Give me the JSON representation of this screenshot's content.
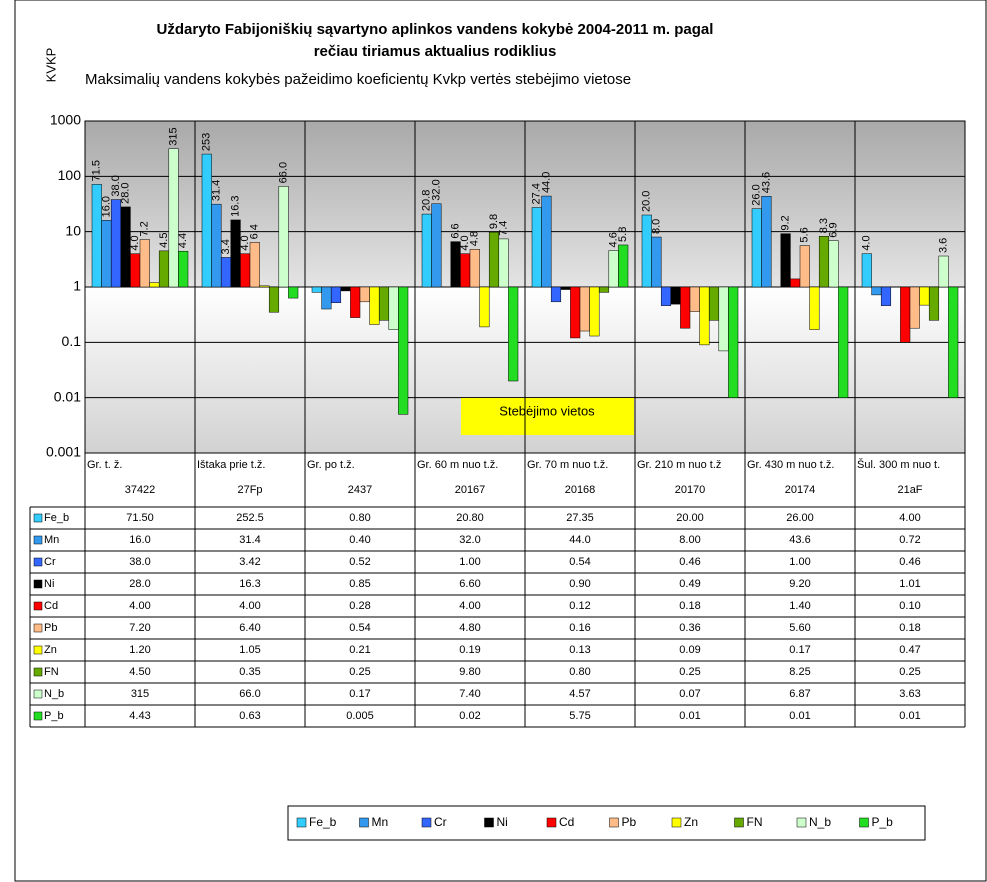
{
  "chart_data": {
    "type": "bar",
    "title": [
      "Uždaryto Fabijoniškių sąvartyno aplinkos vandens kokybė 2004-2011 m. pagal",
      "rečiau tiriamus aktualius rodiklius"
    ],
    "subtitle": "Maksimalių vandens kokybės pažeidimo koeficientų Kvkp vertės stebėjimo vietose",
    "y_label": "KVKP",
    "annotation": "Stebėjimo vietos",
    "log_scale": true,
    "grid": true,
    "legend_position": "bottom",
    "ylim": [
      0.001,
      1000
    ],
    "yticks": [
      0.001,
      0.01,
      0.1,
      1,
      10,
      100,
      1000
    ],
    "categories": [
      "Gr. t. ž.",
      "Ištaka prie t.ž.",
      "Gr. po t.ž.",
      "Gr. 60 m nuo t.ž.",
      "Gr. 70 m nuo t.ž.",
      "Gr. 210 m nuo t.ž",
      "Gr. 430 m nuo t.ž.",
      "Šul. 300 m nuo t."
    ],
    "category_codes": [
      "37422",
      "27Fp",
      "2437",
      "20167",
      "20168",
      "20170",
      "20174",
      "21aF"
    ],
    "series": [
      {
        "name": "Fe_b",
        "color": "#33ccff",
        "values": [
          71.5,
          252.5,
          0.8,
          20.8,
          27.35,
          20,
          26,
          4
        ],
        "value_labels": [
          "71.50",
          "252.5",
          "0.80",
          "20.80",
          "27.35",
          "20.00",
          "26.00",
          "4.00"
        ],
        "bar_labels": [
          "71.5",
          "253",
          null,
          "20.8",
          "27.4",
          "20.0",
          "26.0",
          "4.0"
        ]
      },
      {
        "name": "Mn",
        "color": "#3399ee",
        "values": [
          16,
          31.4,
          0.4,
          32,
          44,
          8,
          43.6,
          0.72
        ],
        "value_labels": [
          "16.0",
          "31.4",
          "0.40",
          "32.0",
          "44.0",
          "8.00",
          "43.6",
          "0.72"
        ],
        "bar_labels": [
          "16.0",
          "31.4",
          null,
          "32.0",
          "44.0",
          "8.0",
          "43.6",
          null
        ]
      },
      {
        "name": "Cr",
        "color": "#3366ff",
        "values": [
          38,
          3.42,
          0.52,
          1,
          0.54,
          0.46,
          1,
          0.46
        ],
        "value_labels": [
          "38.0",
          "3.42",
          "0.52",
          "1.00",
          "0.54",
          "0.46",
          "1.00",
          "0.46"
        ],
        "bar_labels": [
          "38.0",
          "3.4",
          null,
          null,
          null,
          null,
          null,
          null
        ]
      },
      {
        "name": "Ni",
        "color": "#000000",
        "values": [
          28,
          16.3,
          0.85,
          6.6,
          0.9,
          0.49,
          9.2,
          1.01
        ],
        "value_labels": [
          "28.0",
          "16.3",
          "0.85",
          "6.60",
          "0.90",
          "0.49",
          "9.20",
          "1.01"
        ],
        "bar_labels": [
          "28.0",
          "16.3",
          null,
          "6.6",
          null,
          null,
          "9.2",
          null
        ]
      },
      {
        "name": "Cd",
        "color": "#ff0000",
        "values": [
          4,
          4,
          0.28,
          4,
          0.12,
          0.18,
          1.4,
          0.1
        ],
        "value_labels": [
          "4.00",
          "4.00",
          "0.28",
          "4.00",
          "0.12",
          "0.18",
          "1.40",
          "0.10"
        ],
        "bar_labels": [
          "4.0",
          "4.0",
          null,
          "4.0",
          null,
          null,
          null,
          null
        ]
      },
      {
        "name": "Pb",
        "color": "#ffbb88",
        "values": [
          7.2,
          6.4,
          0.54,
          4.8,
          0.16,
          0.36,
          5.6,
          0.18
        ],
        "value_labels": [
          "7.20",
          "6.40",
          "0.54",
          "4.80",
          "0.16",
          "0.36",
          "5.60",
          "0.18"
        ],
        "bar_labels": [
          "7.2",
          "6.4",
          null,
          "4.8",
          null,
          null,
          "5.6",
          null
        ]
      },
      {
        "name": "Zn",
        "color": "#ffff00",
        "values": [
          1.2,
          1.05,
          0.21,
          0.19,
          0.13,
          0.09,
          0.17,
          0.47
        ],
        "value_labels": [
          "1.20",
          "1.05",
          "0.21",
          "0.19",
          "0.13",
          "0.09",
          "0.17",
          "0.47"
        ],
        "bar_labels": [
          null,
          null,
          null,
          null,
          null,
          null,
          null,
          null
        ]
      },
      {
        "name": "FN",
        "color": "#66aa00",
        "values": [
          4.5,
          0.35,
          0.25,
          9.8,
          0.8,
          0.25,
          8.25,
          0.25
        ],
        "value_labels": [
          "4.50",
          "0.35",
          "0.25",
          "9.80",
          "0.80",
          "0.25",
          "8.25",
          "0.25"
        ],
        "bar_labels": [
          "4.5",
          null,
          null,
          "9.8",
          null,
          null,
          "8.3",
          null
        ]
      },
      {
        "name": "N_b",
        "color": "#ccffcc",
        "values": [
          315,
          66,
          0.17,
          7.4,
          4.57,
          0.07,
          6.87,
          3.63
        ],
        "value_labels": [
          "315",
          "66.0",
          "0.17",
          "7.40",
          "4.57",
          "0.07",
          "6.87",
          "3.63"
        ],
        "bar_labels": [
          "315",
          "66.0",
          null,
          "7.4",
          "4.6",
          null,
          "6.9",
          "3.6"
        ]
      },
      {
        "name": "P_b",
        "color": "#22dd22",
        "values": [
          4.43,
          0.63,
          0.005,
          0.02,
          5.75,
          0.01,
          0.01,
          0.01
        ],
        "value_labels": [
          "4.43",
          "0.63",
          "0.005",
          "0.02",
          "5.75",
          "0.01",
          "0.01",
          "0.01"
        ],
        "bar_labels": [
          "4.4",
          null,
          null,
          null,
          "5.8",
          null,
          null,
          null
        ]
      }
    ]
  }
}
